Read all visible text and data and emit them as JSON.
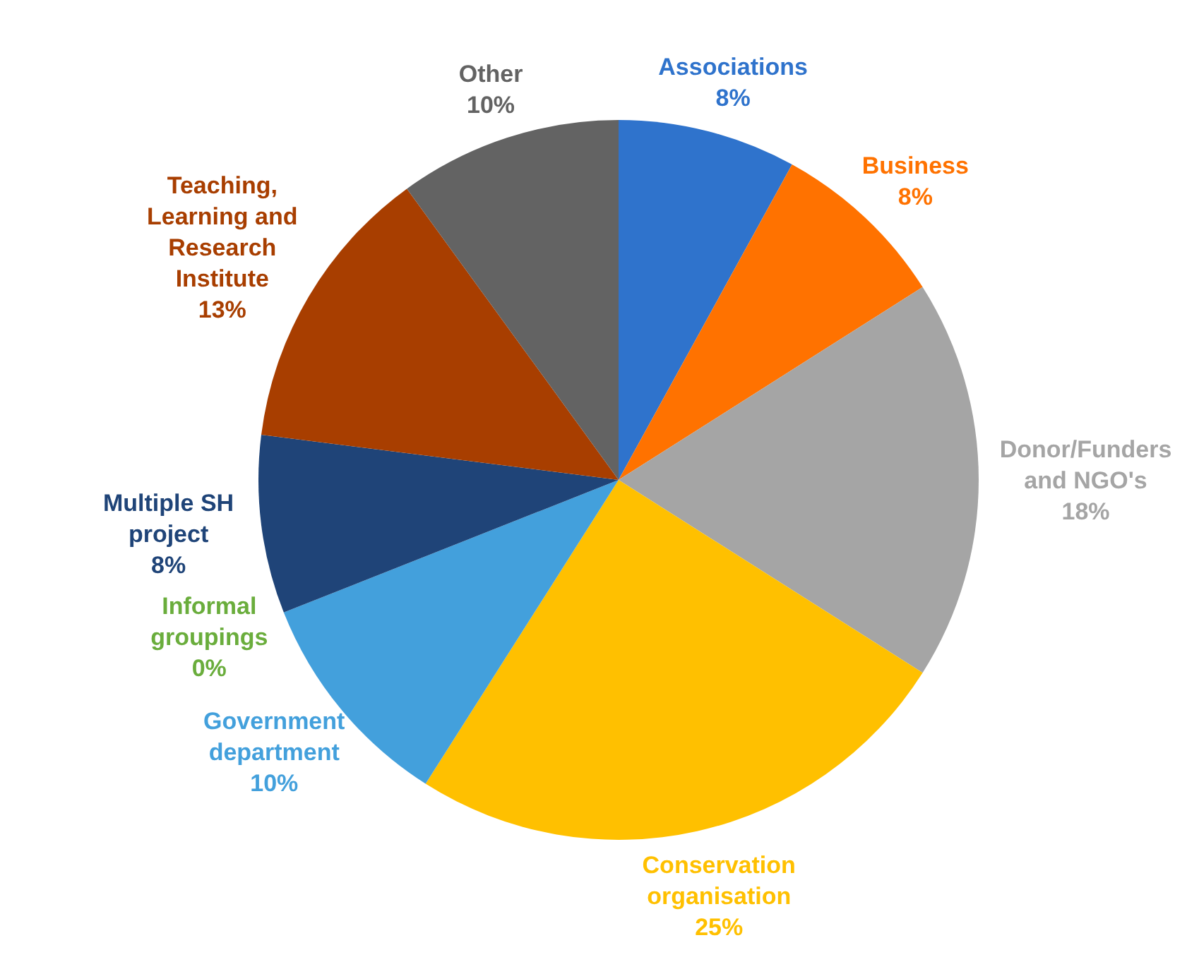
{
  "chart_data": {
    "type": "pie",
    "categories": [
      "Associations",
      "Business",
      "Donor/Funders and NGO's",
      "Conservation organisation",
      "Government department",
      "Informal groupings",
      "Multiple SH project",
      "Teaching, Learning and Research Institute",
      "Other"
    ],
    "values": [
      8,
      8,
      18,
      25,
      10,
      0,
      8,
      13,
      10
    ],
    "value_labels": [
      "8%",
      "8%",
      "18%",
      "25%",
      "10%",
      "0%",
      "8%",
      "13%",
      "10%"
    ],
    "colors": [
      "#2f73cc",
      "#ff7200",
      "#a5a5a5",
      "#ffc000",
      "#43a0dc",
      "#6aad3c",
      "#1f4478",
      "#a83e00",
      "#636363"
    ]
  }
}
